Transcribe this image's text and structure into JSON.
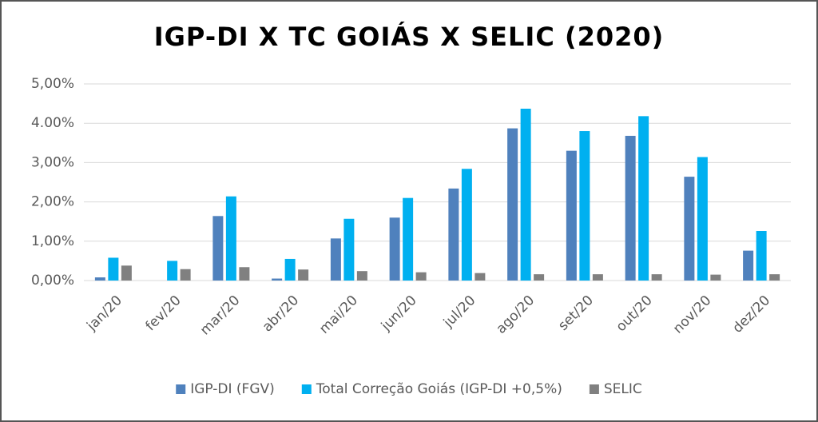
{
  "chart_data": {
    "type": "bar",
    "title": "IGP-DI X TC GOIÁS X SELIC (2020)",
    "categories": [
      "jan/20",
      "fev/20",
      "mar/20",
      "abr/20",
      "mai/20",
      "jun/20",
      "jul/20",
      "ago/20",
      "set/20",
      "out/20",
      "nov/20",
      "dez/20"
    ],
    "series": [
      {
        "name": "IGP-DI (FGV)",
        "color": "#4f81bd",
        "values": [
          0.08,
          0,
          1.64,
          0.05,
          1.07,
          1.6,
          2.34,
          3.87,
          3.3,
          3.68,
          2.64,
          0.76
        ]
      },
      {
        "name": "Total Correção Goiás (IGP-DI +0,5%)",
        "color": "#00b0f0",
        "values": [
          0.58,
          0.5,
          2.14,
          0.55,
          1.57,
          2.1,
          2.84,
          4.37,
          3.8,
          4.18,
          3.14,
          1.26
        ]
      },
      {
        "name": "SELIC",
        "color": "#808080",
        "values": [
          0.38,
          0.29,
          0.34,
          0.28,
          0.24,
          0.21,
          0.19,
          0.16,
          0.16,
          0.16,
          0.15,
          0.16
        ]
      }
    ],
    "ylim": [
      0,
      5
    ],
    "yticks": [
      {
        "value": 0,
        "label": "0,00%"
      },
      {
        "value": 1,
        "label": "1,00%"
      },
      {
        "value": 2,
        "label": "2,00%"
      },
      {
        "value": 3,
        "label": "3,00%"
      },
      {
        "value": 4,
        "label": "4.00%"
      },
      {
        "value": 5,
        "label": "5,00%"
      }
    ],
    "grid": true,
    "legend": "bottom"
  }
}
